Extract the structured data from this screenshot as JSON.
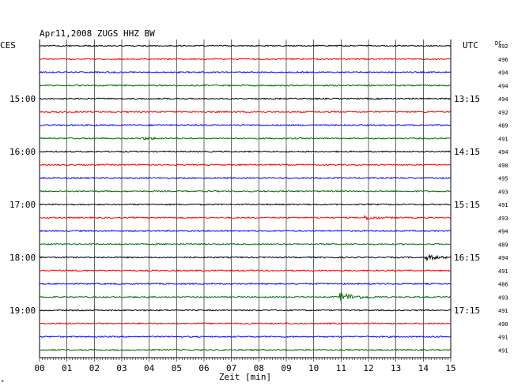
{
  "title": "Apr11,2008   ZUGS HHZ BW",
  "left_axis_label": "CES",
  "right_axis_label": "UTC",
  "dc_header": "DC",
  "corner_mark": "*",
  "colors": {
    "black": "#000000",
    "red": "#ff0000",
    "blue": "#0000ff",
    "green": "#007000",
    "grid": "#000000"
  },
  "chart_data": {
    "type": "line",
    "title": "Apr11,2008   ZUGS HHZ BW",
    "xlabel": "Zeit [min]",
    "xlim": [
      0,
      15
    ],
    "x_ticks": [
      "00",
      "01",
      "02",
      "03",
      "04",
      "05",
      "06",
      "07",
      "08",
      "09",
      "10",
      "11",
      "12",
      "13",
      "14",
      "15"
    ],
    "trace_color_cycle": [
      "black",
      "red",
      "blue",
      "green"
    ],
    "left_time_labels": [
      {
        "trace": 4,
        "text": "15:00"
      },
      {
        "trace": 8,
        "text": "16:00"
      },
      {
        "trace": 12,
        "text": "17:00"
      },
      {
        "trace": 16,
        "text": "18:00"
      },
      {
        "trace": 20,
        "text": "19:00"
      }
    ],
    "right_time_labels": [
      {
        "trace": 4,
        "text": "13:15"
      },
      {
        "trace": 8,
        "text": "14:15"
      },
      {
        "trace": 12,
        "text": "15:15"
      },
      {
        "trace": 16,
        "text": "16:15"
      },
      {
        "trace": 20,
        "text": "17:15"
      }
    ],
    "dc_offsets": [
      "492",
      "496",
      "494",
      "494",
      "494",
      "492",
      "489",
      "491",
      "494",
      "490",
      "495",
      "493",
      "491",
      "493",
      "494",
      "489",
      "494",
      "491",
      "486",
      "493",
      "491",
      "490",
      "491",
      "491"
    ],
    "events": [
      {
        "trace": 7,
        "minute": 3.9,
        "amplitude": 0.35
      },
      {
        "trace": 13,
        "minute": 12.0,
        "amplitude": 0.6
      },
      {
        "trace": 16,
        "minute": 14.2,
        "amplitude": 0.9
      },
      {
        "trace": 19,
        "minute": 11.1,
        "amplitude": 1.6
      }
    ]
  }
}
